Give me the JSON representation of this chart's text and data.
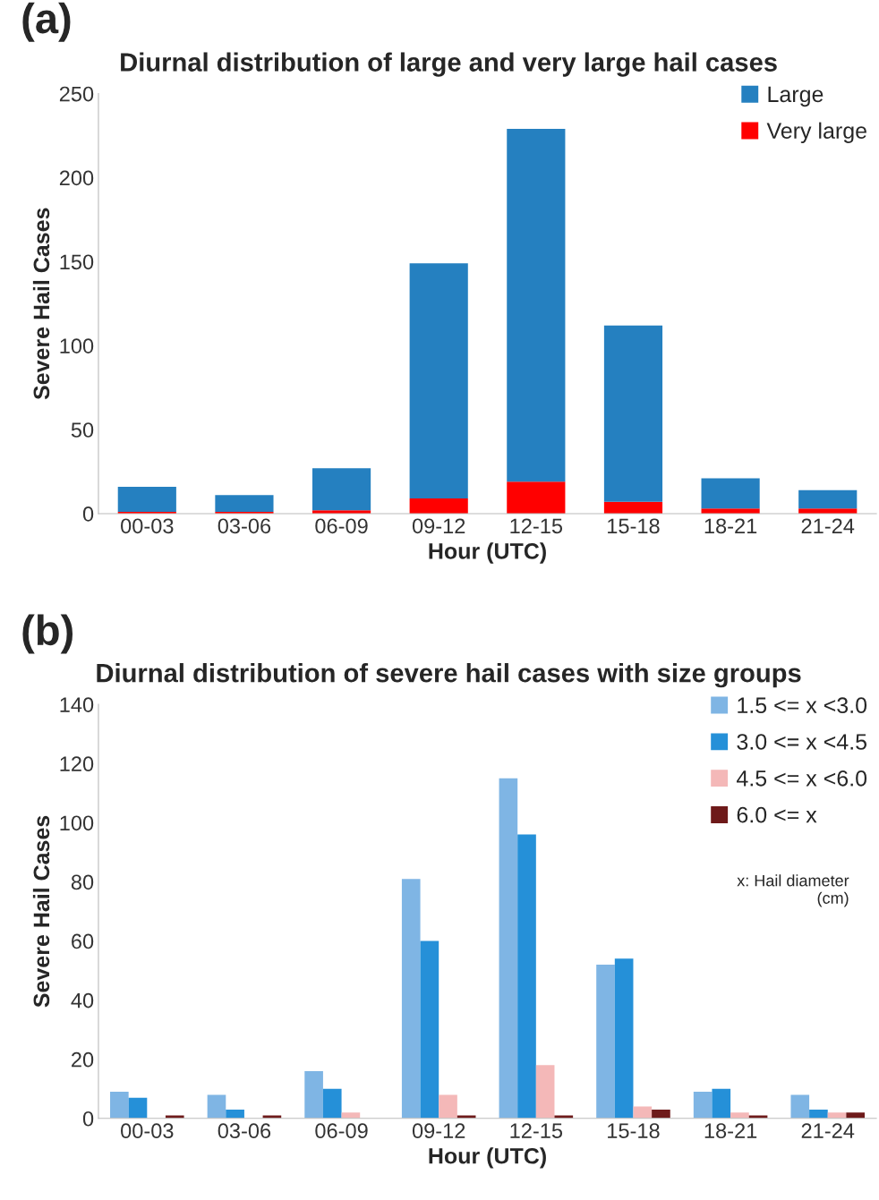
{
  "chart_data": [
    {
      "type": "bar",
      "title": "Diurnal distribution of large and very large hail cases",
      "xlabel": "Hour (UTC)",
      "ylabel": "Severe Hail Cases",
      "annotations": [
        "(a)"
      ],
      "categories": [
        "00-03",
        "03-06",
        "06-09",
        "09-12",
        "12-15",
        "15-18",
        "18-21",
        "21-24"
      ],
      "stacked": true,
      "series": [
        {
          "name": "Very large",
          "color": "#ff0000",
          "values": [
            1,
            1,
            2,
            9,
            19,
            7,
            3,
            3
          ]
        },
        {
          "name": "Large",
          "color": "#2580c0",
          "values": [
            15,
            10,
            25,
            140,
            210,
            105,
            18,
            11
          ]
        }
      ],
      "ylim": [
        0,
        250
      ],
      "yticks": [
        0,
        50,
        100,
        150,
        200,
        250
      ],
      "grid": false,
      "legend": "top right"
    },
    {
      "type": "bar",
      "title": "Diurnal distribution of severe hail cases with size groups",
      "xlabel": "Hour (UTC)",
      "ylabel": "Severe Hail Cases",
      "annotations": [
        "(b)",
        "x: Hail diameter\n(cm)"
      ],
      "categories": [
        "00-03",
        "03-06",
        "06-09",
        "09-12",
        "12-15",
        "15-18",
        "18-21",
        "21-24"
      ],
      "series": [
        {
          "name": "1.5 <= x <3.0",
          "color": "#7fb5e4",
          "values": [
            9,
            8,
            16,
            81,
            115,
            52,
            9,
            8
          ]
        },
        {
          "name": "3.0 <= x <4.5",
          "color": "#2590d8",
          "values": [
            7,
            3,
            10,
            60,
            96,
            54,
            10,
            3
          ]
        },
        {
          "name": "4.5 <= x <6.0",
          "color": "#f4b8b8",
          "values": [
            0,
            0,
            2,
            8,
            18,
            4,
            2,
            2
          ]
        },
        {
          "name": "6.0 <= x",
          "color": "#6e1a1a",
          "values": [
            1,
            1,
            0,
            1,
            1,
            3,
            1,
            2
          ]
        }
      ],
      "ylim": [
        0,
        140
      ],
      "yticks": [
        0,
        20,
        40,
        60,
        80,
        100,
        120,
        140
      ],
      "grid": false,
      "legend": "top right"
    }
  ]
}
